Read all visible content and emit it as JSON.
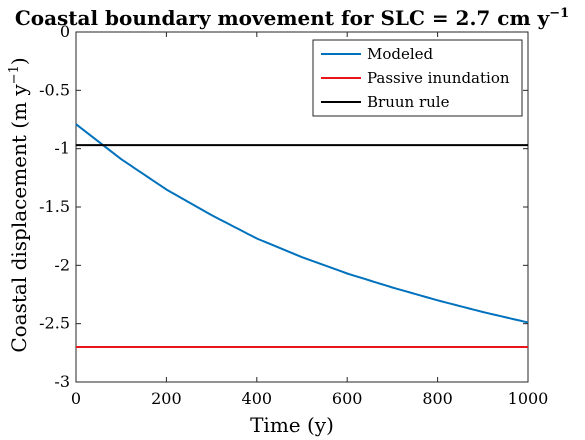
{
  "chart_data": {
    "type": "line",
    "title": "Coastal boundary movement for SLC = 2.7 cm y",
    "title_superscript": "−1",
    "xlabel": "Time (y)",
    "ylabel": "Coastal displacement (m y",
    "ylabel_superscript": "−1",
    "ylabel_suffix": ")",
    "xlim": [
      0,
      1000
    ],
    "ylim": [
      -3,
      0
    ],
    "xticks": [
      0,
      200,
      400,
      600,
      800,
      1000
    ],
    "xtick_labels": [
      "0",
      "200",
      "400",
      "600",
      "800",
      "1000"
    ],
    "yticks": [
      0,
      -0.5,
      -1,
      -1.5,
      -2,
      -2.5,
      -3
    ],
    "ytick_labels": [
      "0",
      "-0.5",
      "-1",
      "-1.5",
      "-2",
      "-2.5",
      "-3"
    ],
    "grid": false,
    "legend_position": "top-right",
    "series": [
      {
        "name": "Modeled",
        "color": "#0072BD",
        "x": [
          0,
          100,
          200,
          300,
          400,
          500,
          600,
          700,
          800,
          900,
          1000
        ],
        "y": [
          -0.79,
          -1.09,
          -1.35,
          -1.57,
          -1.77,
          -1.93,
          -2.07,
          -2.19,
          -2.3,
          -2.4,
          -2.49
        ]
      },
      {
        "name": "Passive inundation",
        "color": "#E8161A",
        "x": [
          0,
          1000
        ],
        "y": [
          -2.7,
          -2.7
        ]
      },
      {
        "name": "Bruun rule",
        "color": "#000000",
        "x": [
          0,
          1000
        ],
        "y": [
          -0.97,
          -0.97
        ]
      }
    ]
  }
}
